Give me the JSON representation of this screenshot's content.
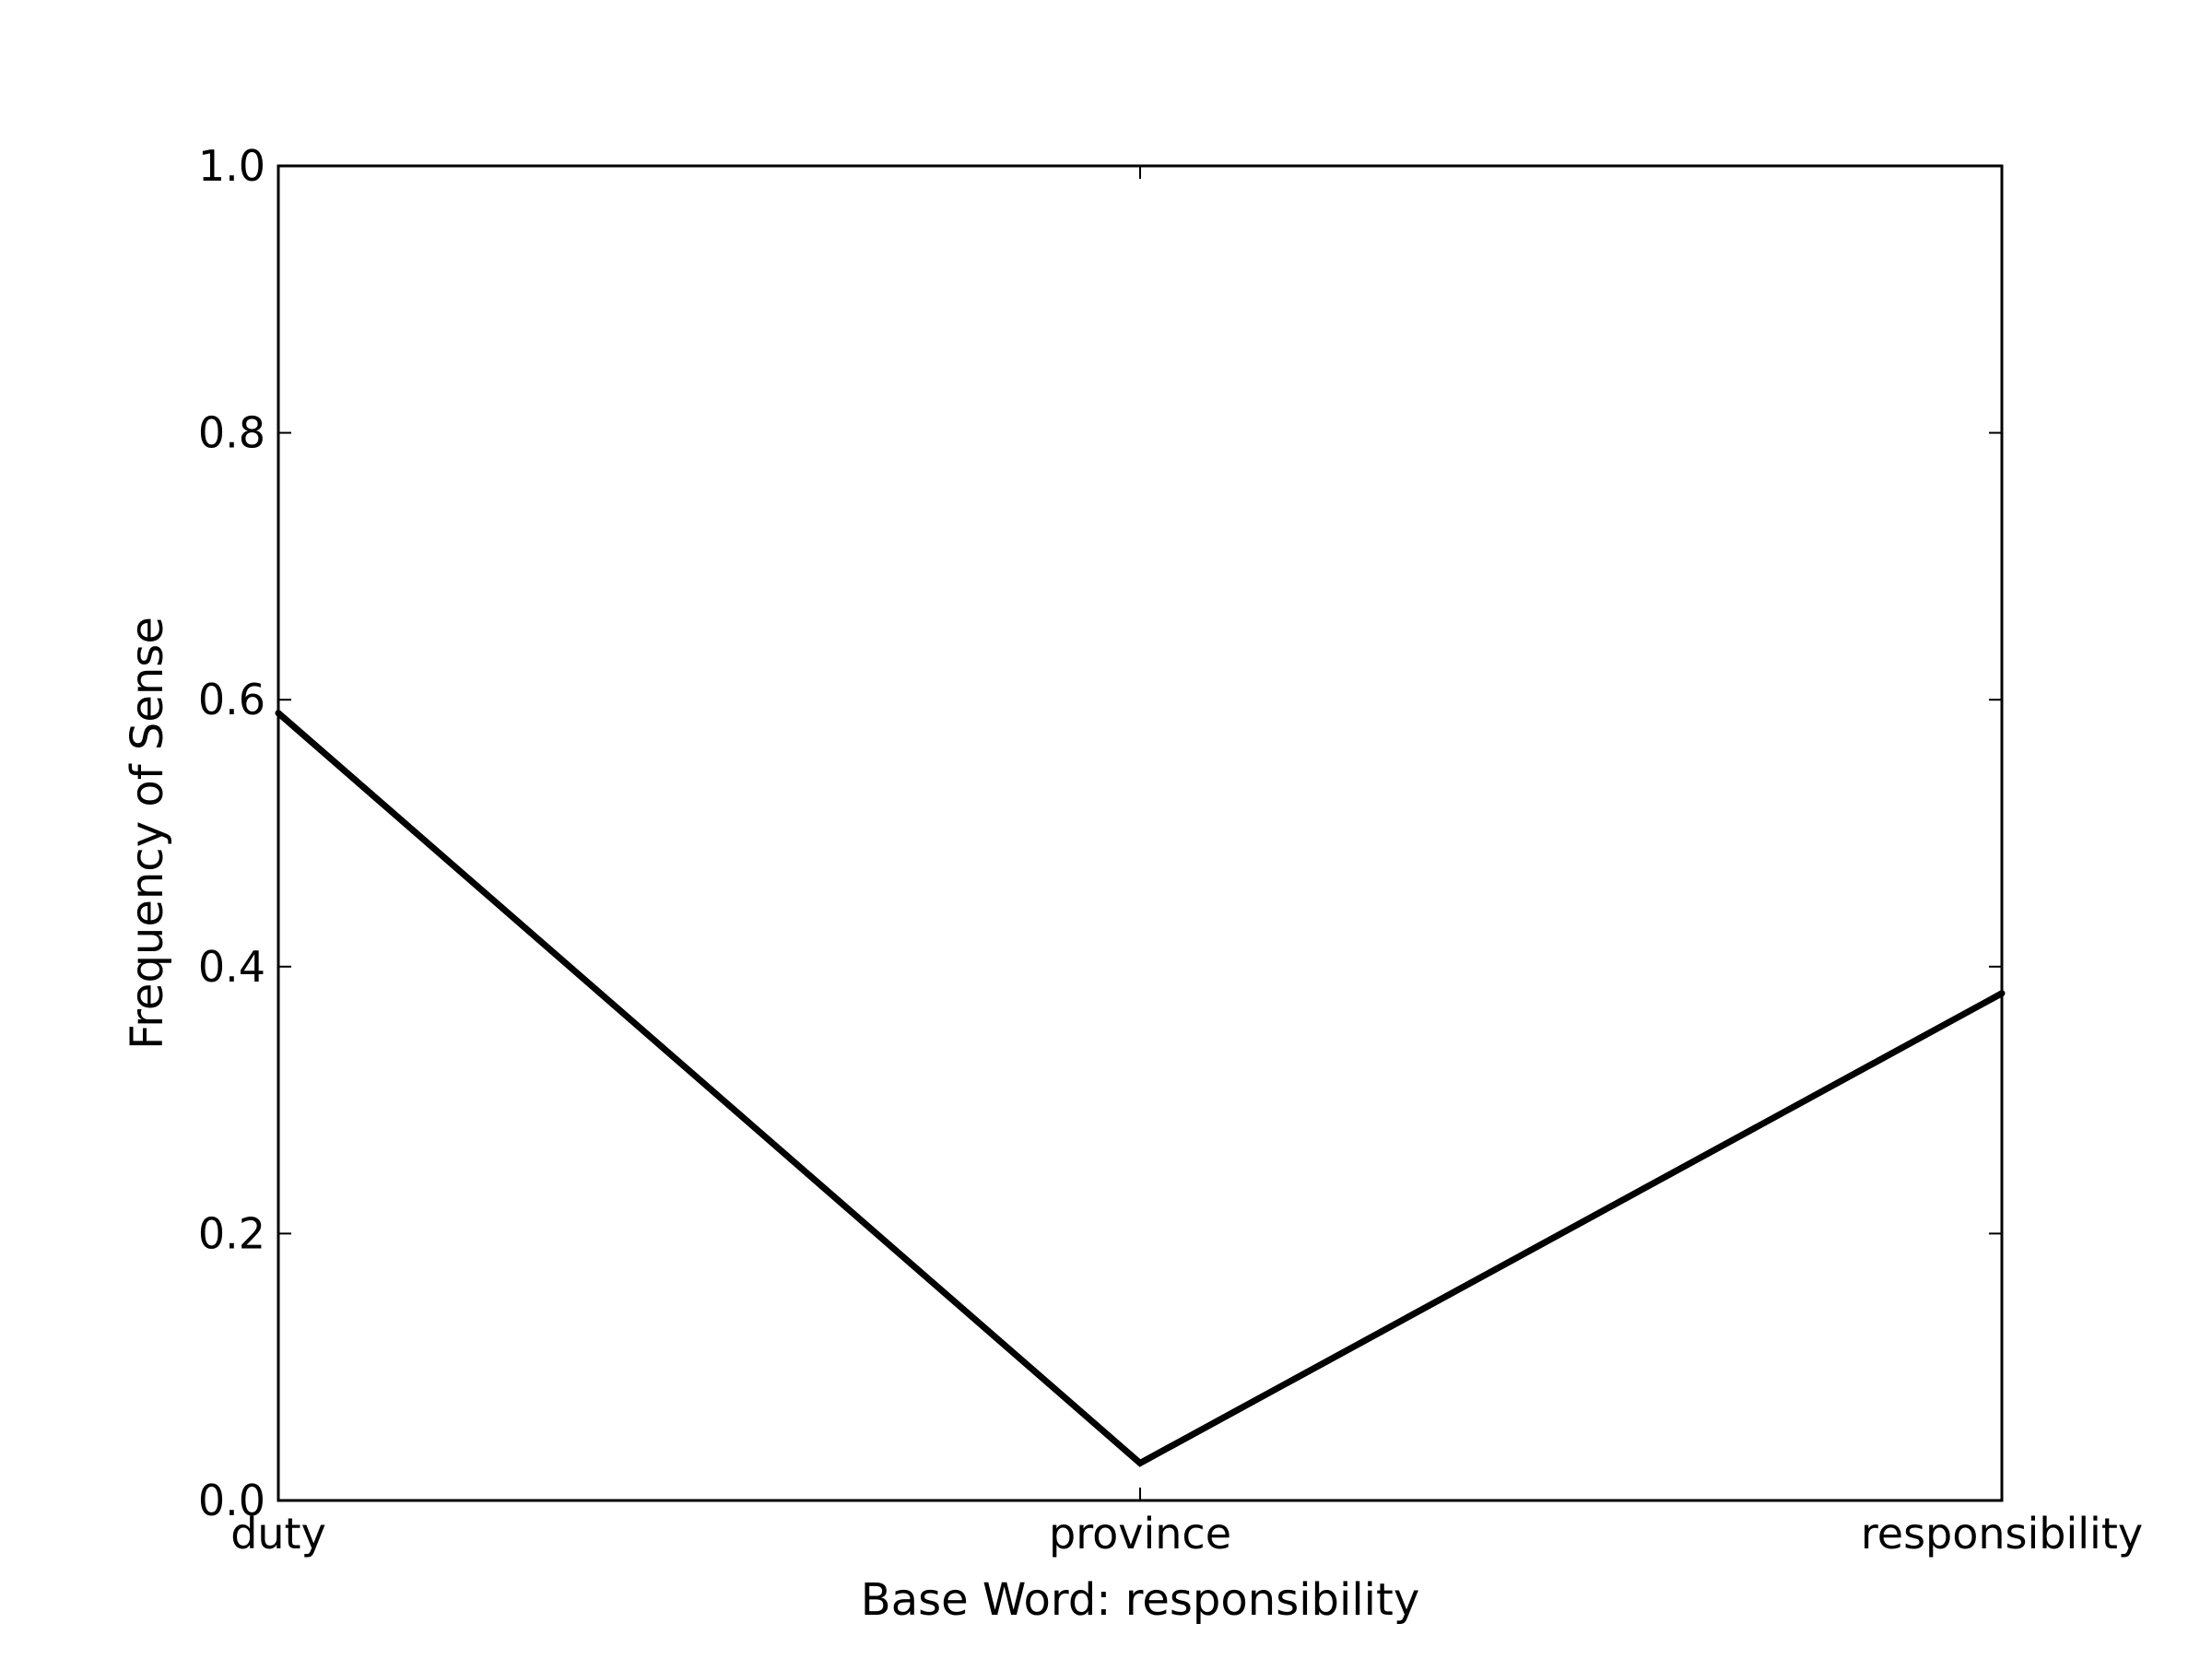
{
  "chart_data": {
    "type": "line",
    "categories": [
      "duty",
      "province",
      "responsibility"
    ],
    "series": [
      {
        "values": [
          0.59,
          0.028,
          0.38
        ],
        "color": "#000000"
      }
    ],
    "xlabel": "Base Word: responsibility",
    "ylabel": "Frequency of Sense",
    "ylim": [
      0.0,
      1.0
    ],
    "yticks": [
      0.0,
      0.2,
      0.4,
      0.6,
      0.8,
      1.0
    ],
    "ytick_labels": [
      "0.0",
      "0.2",
      "0.4",
      "0.6",
      "0.8",
      "1.0"
    ],
    "grid": false,
    "legend": "none"
  }
}
